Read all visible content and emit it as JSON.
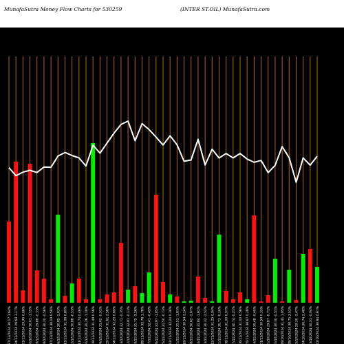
{
  "header": {
    "left_title": "MunafaSutra  Money Flow  Charts for 530259",
    "right_title": "(INTER ST.OIL) MunafaSutra.com"
  },
  "chart_data": {
    "type": "bar",
    "title": "Money Flow Charts for 530259 (INTER ST.OIL)",
    "y_axis_shown": false,
    "grid": "vertical orange lines",
    "colors": {
      "up": "#00ee00",
      "down": "#ff1111",
      "line": "#ffffff",
      "grid": "#b06a1a"
    },
    "categories": [
      "Fri 27 Dec 2024",
      "Tue 24 Dec 2024",
      "Mon 23 Dec 2024",
      "Fri 20 Dec 2024",
      "Thu 19 Dec 2024",
      "Wed 18 Dec 2024",
      "Tue 17 Dec 2024",
      "Mon 16 Dec 2024",
      "Fri 13 Dec 2024",
      "Thu 12 Dec 2024",
      "Wed 11 Dec 2024",
      "Tue 10 Dec 2024",
      "Mon 09 Dec 2024",
      "Fri 06 Dec 2024",
      "Thu 05 Dec 2024",
      "Wed 04 Dec 2024",
      "Tue 03 Dec 2024",
      "Mon 02 Dec 2024",
      "Fri 29 Nov 2024",
      "Thu 28 Nov 2024",
      "Wed 27 Nov 2024",
      "Tue 26 Nov 2024",
      "Mon 25 Nov 2024",
      "Fri 22 Nov 2024",
      "Thu 21 Nov 2024",
      "Tue 19 Nov 2024",
      "Mon 18 Nov 2024",
      "Thu 14 Nov 2024",
      "Wed 13 Nov 2024",
      "Tue 12 Nov 2024",
      "Mon 11 Nov 2024",
      "Fri 08 Nov 2024",
      "Thu 07 Nov 2024",
      "Wed 06 Nov 2024",
      "Tue 05 Nov 2024",
      "Mon 04 Nov 2024",
      "Fri 01 Nov 2024",
      "Thu 31 Oct 2024",
      "Wed 30 Oct 2024",
      "Tue 29 Oct 2024",
      "Mon 28 Oct 2024",
      "Fri 25 Oct 2024",
      "Thu 24 Oct 2024",
      "Wed 23 Oct 2024",
      "Tue 22 Oct 2024"
    ],
    "tick_labels": [
      "Fri 27/12/2024 30.17 1.64% ",
      "Tue 24/12/2024 29.69 3.17% ",
      "Mon 23/12/2024 29.90 0.06% ",
      "Fri 20/12/2024 30.01 -1.15% ",
      "Thu 19/12/2024 29.88 -0.33% ",
      "Wed 18/12/2024 30.20 -0.56% ",
      "Tue 17/12/2024 30.19 0.50% ",
      "Mon 16/12/2024 30.85 -1.03% ",
      "Fri 13/12/2024 31.06 0.89% ",
      "Thu 12/12/2024 30.88 -0.53% ",
      "Wed 11/12/2024 30.74 0.46% ",
      "Tue 10/12/2024 30.26 -1.18% ",
      "Mon 09/12/2024 31.49 0.56% ",
      "Fri 06/12/2024 31.02 -0.51% ",
      "Thu 05/12/2024 31.61 2.58% ",
      "Wed 04/12/2024 32.20 0.89% ",
      "Tue 03/12/2024 32.71 -0.35% ",
      "Mon 02/12/2024 32.91 -0.13% ",
      "Fri 29/11/2024 31.75 -3.26% ",
      "Thu 28/11/2024 32.76 1.78% ",
      "Wed 27/11/2024 32.41 -0.49% ",
      "Tue 26/11/2024 31.97 -1.05% ",
      "Mon 25/11/2024 31.50 -0.73% ",
      "Fri 22/11/2024 32.04 0.30% ",
      "Thu 21/11/2024 31.51 -1.83% ",
      "Tue 19/11/2024 30.54 2.14% ",
      "Mon 18/11/2024 30.62 -1.67% ",
      "Thu 14/11/2024 31.84 -1.61% ",
      "Wed 13/11/2024 30.32 -2.52% ",
      "Tue 12/11/2024 31.25 0.94% ",
      "Mon 11/11/2024 30.73 -0.16% ",
      "Fri 08/11/2024 31.00 0.97% ",
      "Thu 07/11/2024 30.74 -0.21% ",
      "Wed 06/11/2024 31.00 0.56% ",
      "Tue 05/11/2024 30.67 0.28% ",
      "Mon 04/11/2024 30.48 -0.40% ",
      "Fri 01/11/2024 30.59 0.35% ",
      "Thu 31/10/2024 29.87 -0.71% ",
      "Wed 30/10/2024 30.30 -0.51% ",
      "Tue 29/10/2024 31.41 1.05% ",
      "Mon 28/10/2024 30.75 3.51% ",
      "Fri 25/10/2024 29.30 -2.47% ",
      "Thu 24/10/2024 30.74 2.48% ",
      "Wed 23/10/2024 30.31 -0.94% ",
      "Tue 22/10/2024 30.84 0.67% "
    ],
    "series": [
      {
        "kind": "bar",
        "values": [
          118,
          205,
          18,
          202,
          47,
          35,
          5,
          128,
          10,
          28,
          35,
          5,
          232,
          5,
          12,
          15,
          87,
          19,
          24,
          14,
          44,
          157,
          30,
          12,
          9,
          2,
          3,
          38,
          7,
          2,
          99,
          17,
          5,
          15,
          5,
          127,
          2,
          11,
          64,
          2,
          48,
          4,
          71,
          78,
          52
        ],
        "directions": [
          "down",
          "down",
          "down",
          "down",
          "down",
          "down",
          "down",
          "up",
          "down",
          "up",
          "down",
          "down",
          "up",
          "down",
          "down",
          "down",
          "down",
          "up",
          "down",
          "up",
          "up",
          "down",
          "down",
          "up",
          "down",
          "up",
          "up",
          "down",
          "down",
          "up",
          "up",
          "down",
          "down",
          "down",
          "up",
          "down",
          "down",
          "down",
          "up",
          "down",
          "up",
          "down",
          "up",
          "down",
          "up"
        ]
      },
      {
        "kind": "line",
        "values": [
          30.17,
          29.69,
          29.9,
          30.01,
          29.88,
          30.2,
          30.19,
          30.85,
          31.06,
          30.88,
          30.74,
          30.26,
          31.49,
          31.02,
          31.61,
          32.2,
          32.71,
          32.91,
          31.75,
          32.76,
          32.41,
          31.97,
          31.5,
          32.04,
          31.51,
          30.54,
          30.62,
          31.84,
          30.32,
          31.25,
          30.73,
          31.0,
          30.74,
          31.0,
          30.67,
          30.48,
          30.59,
          29.87,
          30.3,
          31.41,
          30.75,
          29.3,
          30.74,
          30.31,
          30.84
        ]
      }
    ]
  }
}
